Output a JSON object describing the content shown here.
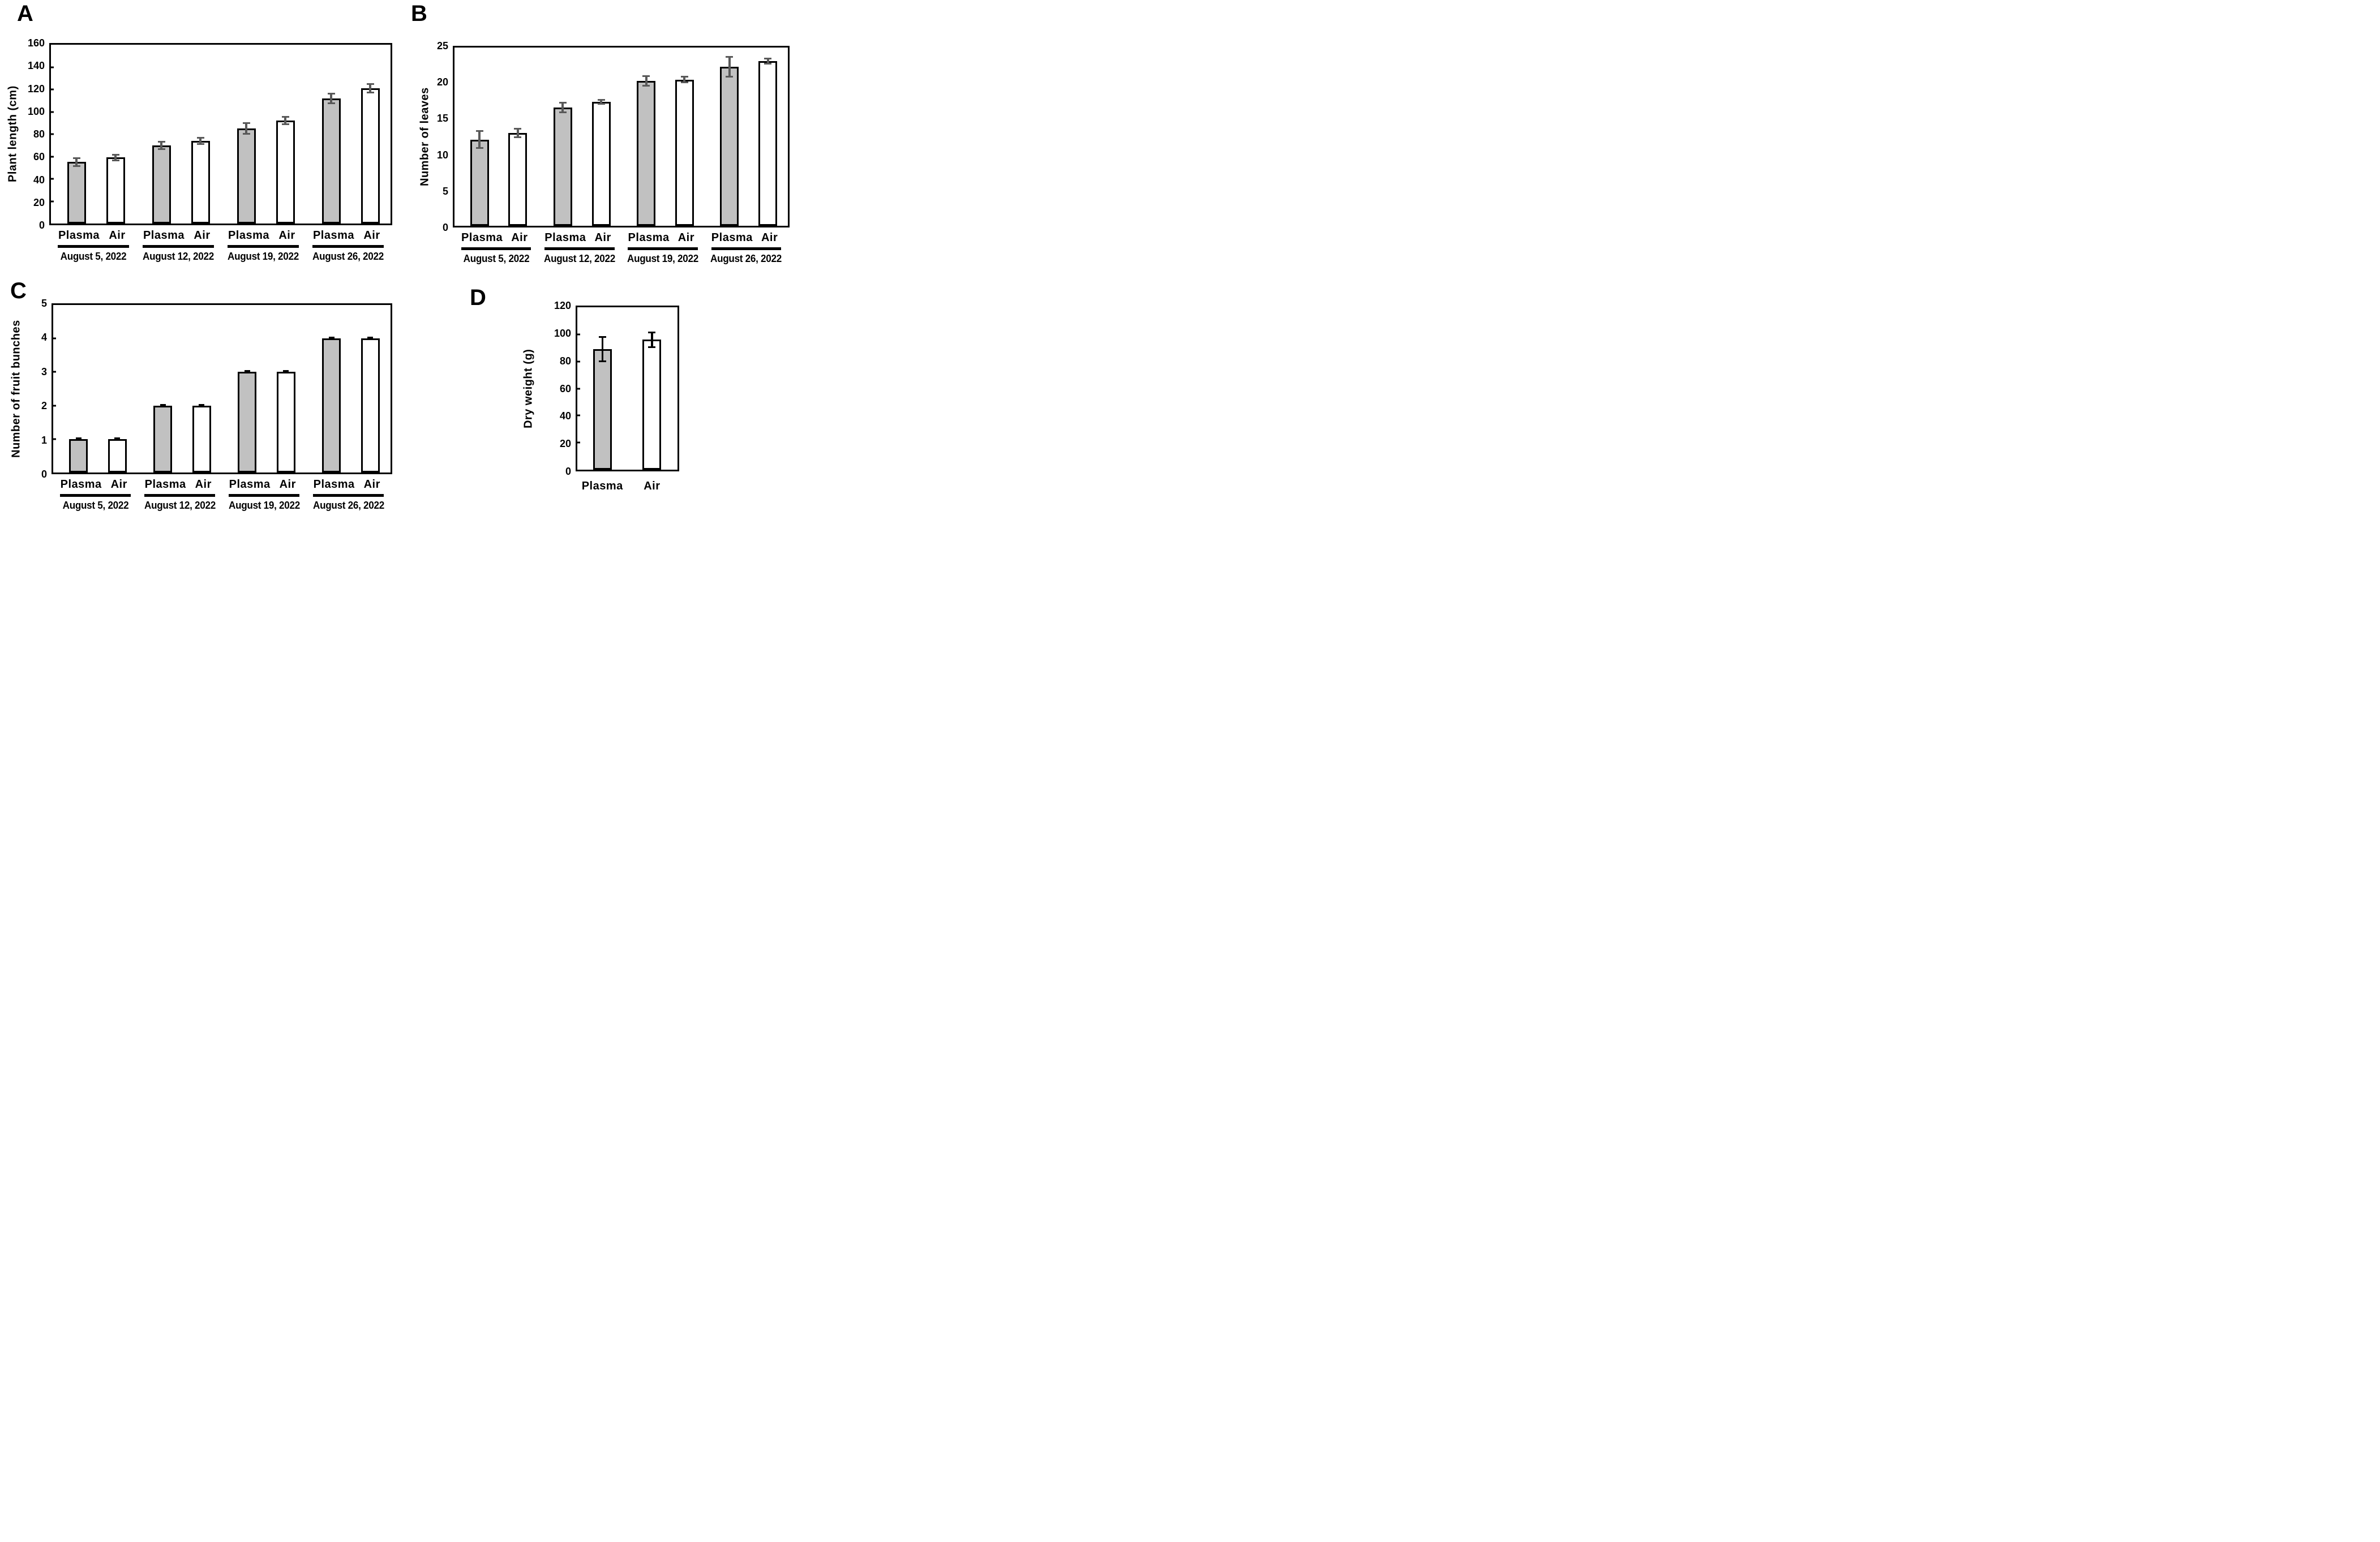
{
  "colors": {
    "background": "#ffffff",
    "bar_gray_fill": "#c1c1c1",
    "bar_white_fill": "#ffffff",
    "bar_outline": "#000000",
    "error_bar_gray": "#595959",
    "error_bar_black": "#000000"
  },
  "chart_data": [
    {
      "type": "bar",
      "panel": "A",
      "ylabel": "Plant length (cm)",
      "ylim": [
        0,
        160
      ],
      "ytick_step": 20,
      "ticks_inside": true,
      "err_color": "#595959",
      "grid": false,
      "legend": "none",
      "groups": [
        {
          "date": "August 5, 2022",
          "bars": [
            {
              "label": "Plasma",
              "value": 55,
              "err": 4.5,
              "fill": "gray"
            },
            {
              "label": "Air",
              "value": 59,
              "err": 3.5,
              "fill": "white"
            }
          ]
        },
        {
          "date": "August 12, 2022",
          "bars": [
            {
              "label": "Plasma",
              "value": 70,
              "err": 4,
              "fill": "gray"
            },
            {
              "label": "Air",
              "value": 74,
              "err": 3.5,
              "fill": "white"
            }
          ]
        },
        {
          "date": "August 19, 2022",
          "bars": [
            {
              "label": "Plasma",
              "value": 85,
              "err": 5.5,
              "fill": "gray"
            },
            {
              "label": "Air",
              "value": 92,
              "err": 4,
              "fill": "white"
            }
          ]
        },
        {
          "date": "August 26, 2022",
          "bars": [
            {
              "label": "Plasma",
              "value": 112,
              "err": 5,
              "fill": "gray"
            },
            {
              "label": "Air",
              "value": 121,
              "err": 4.5,
              "fill": "white"
            }
          ]
        }
      ]
    },
    {
      "type": "bar",
      "panel": "B",
      "ylabel": "Number of leaves",
      "ylim": [
        0,
        25
      ],
      "ytick_step": 5,
      "ticks_inside": false,
      "err_color": "#595959",
      "grid": false,
      "legend": "none",
      "groups": [
        {
          "date": "August 5, 2022",
          "bars": [
            {
              "label": "Plasma",
              "value": 12.1,
              "err": 1.3,
              "fill": "gray"
            },
            {
              "label": "Air",
              "value": 13,
              "err": 0.7,
              "fill": "white"
            }
          ]
        },
        {
          "date": "August 12, 2022",
          "bars": [
            {
              "label": "Plasma",
              "value": 16.6,
              "err": 0.8,
              "fill": "gray"
            },
            {
              "label": "Air",
              "value": 17.4,
              "err": 0.4,
              "fill": "white"
            }
          ]
        },
        {
          "date": "August 19, 2022",
          "bars": [
            {
              "label": "Plasma",
              "value": 20.3,
              "err": 0.8,
              "fill": "gray"
            },
            {
              "label": "Air",
              "value": 20.5,
              "err": 0.5,
              "fill": "white"
            }
          ]
        },
        {
          "date": "August 26, 2022",
          "bars": [
            {
              "label": "Plasma",
              "value": 22.3,
              "err": 1.5,
              "fill": "gray"
            },
            {
              "label": "Air",
              "value": 23.1,
              "err": 0.5,
              "fill": "white"
            }
          ]
        }
      ]
    },
    {
      "type": "bar",
      "panel": "C",
      "ylabel": "Number of fruit bunches",
      "ylim": [
        0,
        5
      ],
      "ytick_step": 1,
      "ticks_inside": true,
      "err_color": "#000000",
      "grid": false,
      "legend": "none",
      "groups": [
        {
          "date": "August 5, 2022",
          "bars": [
            {
              "label": "Plasma",
              "value": 1,
              "err": 0.05,
              "fill": "gray"
            },
            {
              "label": "Air",
              "value": 1,
              "err": 0.05,
              "fill": "white"
            }
          ]
        },
        {
          "date": "August 12, 2022",
          "bars": [
            {
              "label": "Plasma",
              "value": 2,
              "err": 0.05,
              "fill": "gray"
            },
            {
              "label": "Air",
              "value": 2,
              "err": 0.05,
              "fill": "white"
            }
          ]
        },
        {
          "date": "August 19, 2022",
          "bars": [
            {
              "label": "Plasma",
              "value": 3,
              "err": 0.05,
              "fill": "gray"
            },
            {
              "label": "Air",
              "value": 3,
              "err": 0.05,
              "fill": "white"
            }
          ]
        },
        {
          "date": "August 26, 2022",
          "bars": [
            {
              "label": "Plasma",
              "value": 4,
              "err": 0.05,
              "fill": "gray"
            },
            {
              "label": "Air",
              "value": 4,
              "err": 0.05,
              "fill": "white"
            }
          ]
        }
      ]
    },
    {
      "type": "bar",
      "panel": "D",
      "ylabel": "Dry weight (g)",
      "ylim": [
        0,
        120
      ],
      "ytick_step": 20,
      "ticks_inside": true,
      "err_color": "#000000",
      "grid": false,
      "legend": "none",
      "bars": [
        {
          "label": "Plasma",
          "value": 89,
          "err": 9.5,
          "fill": "gray"
        },
        {
          "label": "Air",
          "value": 96,
          "err": 6,
          "fill": "white"
        }
      ]
    }
  ]
}
